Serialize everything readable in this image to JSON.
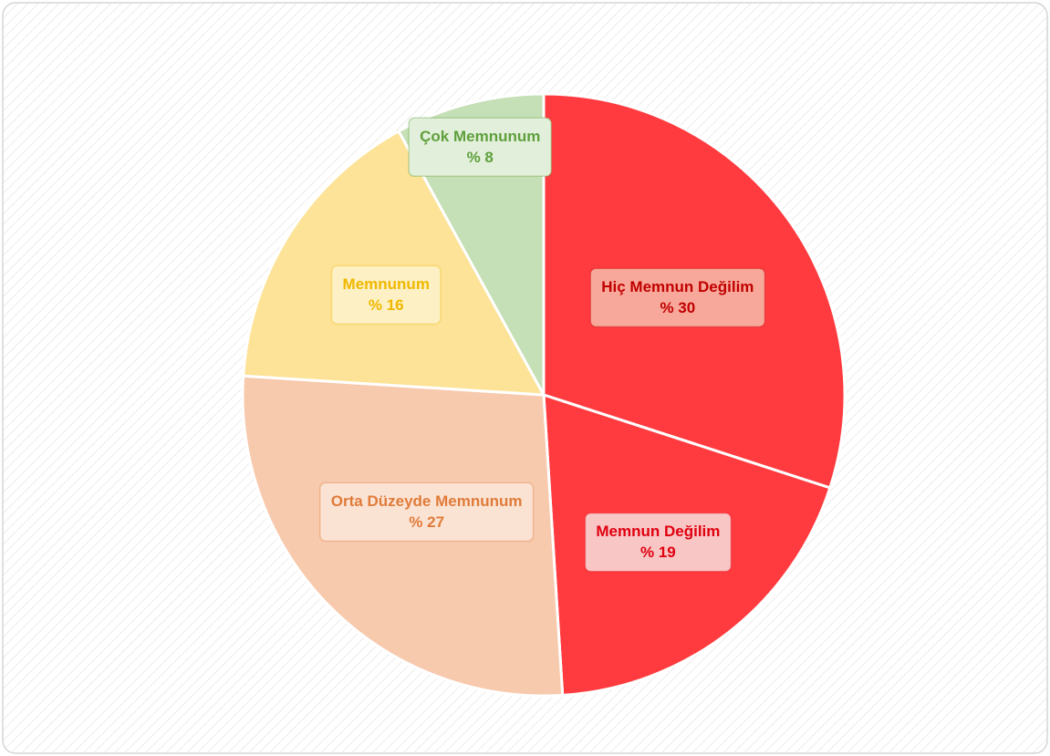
{
  "chart_data": {
    "type": "pie",
    "categories": [
      "Hiç Memnun Değilim",
      "Memnun Değilim",
      "Orta Düzeyde Memnunum",
      "Memnunum",
      "Çok Memnunum"
    ],
    "values": [
      30,
      19,
      27,
      16,
      8
    ],
    "value_labels": [
      "% 30",
      "% 19",
      "% 27",
      "% 16",
      "% 8"
    ],
    "colors": [
      "#ff3b3f",
      "#ff3b3f",
      "#f7c9ad",
      "#fde398",
      "#c5dfb6"
    ],
    "label_colors": [
      "#c00000",
      "#e0000f",
      "#e07b39",
      "#f0b800",
      "#5fa03d"
    ],
    "label_box_colors": [
      "#f8a89a",
      "#f9c6c6",
      "#fbe3d4",
      "#fdf0c4",
      "#e2efda"
    ]
  }
}
